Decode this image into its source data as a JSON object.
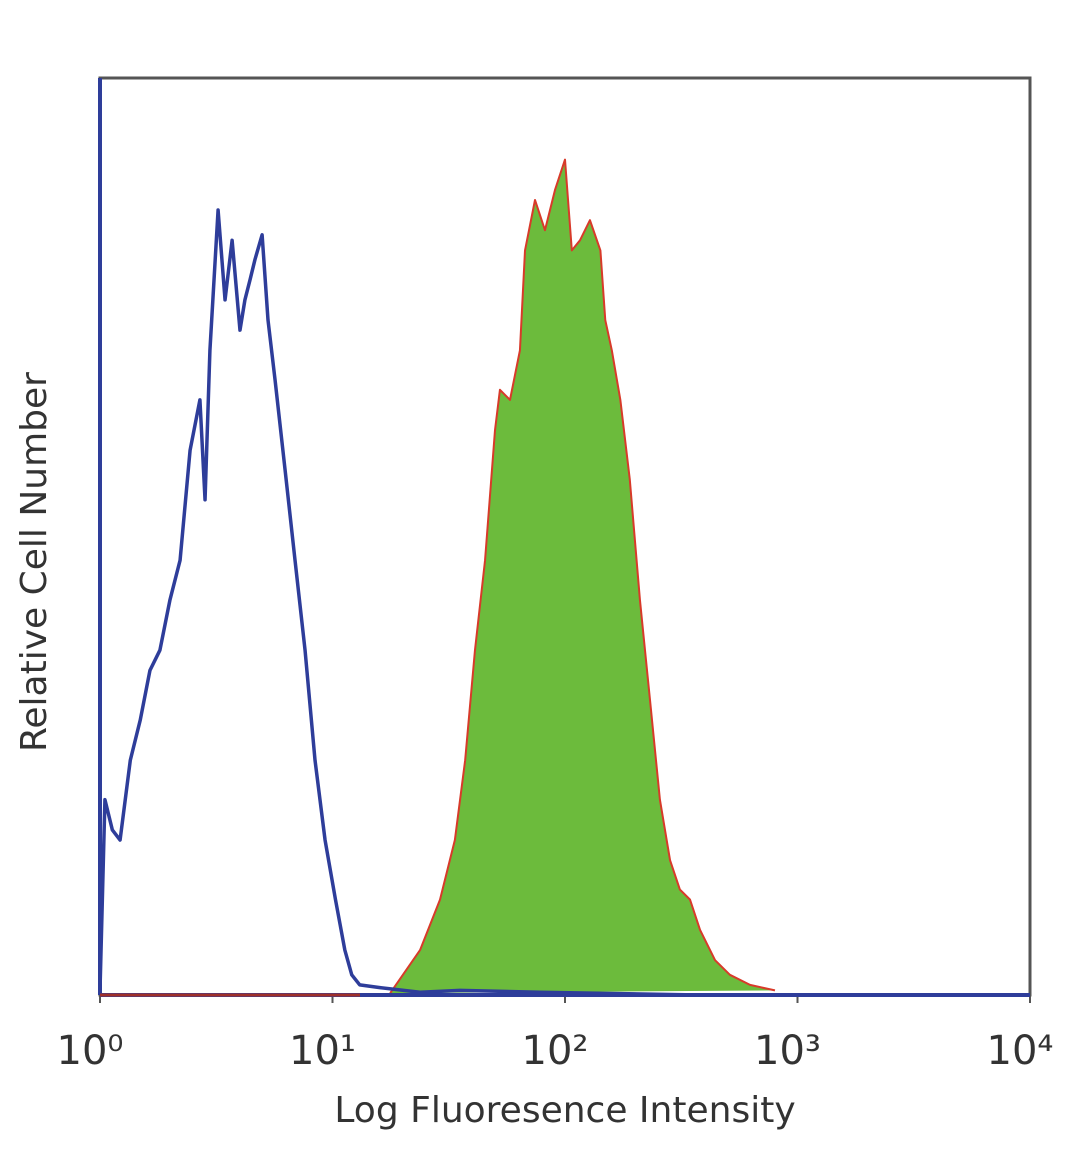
{
  "chart_data": {
    "type": "line",
    "x_label": "Log Fluoresence Intensity",
    "y_label": "Relative Cell Number",
    "xscale": "log",
    "xlim": [
      1,
      10000
    ],
    "xticks": [
      {
        "value": 1,
        "label": "10⁰"
      },
      {
        "value": 10,
        "label": "10¹"
      },
      {
        "value": 100,
        "label": "10²"
      },
      {
        "value": 1000,
        "label": "10³"
      },
      {
        "value": 10000,
        "label": "10⁴"
      }
    ],
    "ylim": [
      0,
      100
    ],
    "grid": false,
    "series": [
      {
        "color": "#d83a2a",
        "fill": "#6cbb3c",
        "x": [
          17.7,
          23.8,
          29.0,
          33.6,
          37.2,
          41.0,
          45.3,
          50.0,
          52.5,
          58.0,
          64.0,
          67.3,
          74.3,
          82.0,
          90.6,
          100,
          107,
          116,
          128,
          142,
          149,
          159,
          173,
          190,
          210,
          232,
          256,
          283,
          312,
          345,
          381,
          442,
          512,
          625,
          800
        ],
        "values": [
          0.2,
          4.9,
          10.4,
          16.9,
          25.6,
          37.6,
          47.4,
          61.6,
          66.0,
          64.9,
          70.3,
          81.2,
          86.7,
          83.4,
          87.8,
          91.1,
          81.2,
          82.3,
          84.5,
          81.2,
          73.6,
          70.3,
          64.9,
          56.2,
          43.1,
          32.2,
          21.3,
          14.7,
          11.5,
          10.4,
          7.1,
          3.8,
          2.2,
          1.1,
          0.5
        ]
      },
      {
        "color": "#2e3d9a",
        "x": [
          1,
          1.05,
          1.13,
          1.22,
          1.35,
          1.49,
          1.64,
          1.81,
          2.0,
          2.21,
          2.44,
          2.69,
          2.83,
          2.97,
          3.22,
          3.45,
          3.7,
          4.0,
          4.2,
          4.42,
          4.64,
          4.98,
          5.28,
          5.66,
          6.25,
          6.9,
          7.62,
          8.41,
          9.29,
          10.3,
          11.3,
          12.1,
          13.1,
          16.0,
          23.8,
          35.3,
          78.0,
          381,
          10000
        ],
        "values": [
          0.5,
          21.3,
          18.0,
          16.9,
          25.6,
          30.0,
          35.4,
          37.6,
          43.1,
          47.4,
          59.4,
          64.9,
          54.0,
          70.3,
          85.6,
          75.8,
          82.3,
          72.5,
          75.8,
          78.0,
          80.2,
          82.9,
          73.6,
          67.1,
          57.3,
          47.4,
          37.6,
          25.6,
          16.9,
          10.4,
          4.9,
          2.2,
          1.1,
          0.8,
          0.3,
          0.5,
          0.3,
          0,
          0
        ]
      }
    ]
  }
}
